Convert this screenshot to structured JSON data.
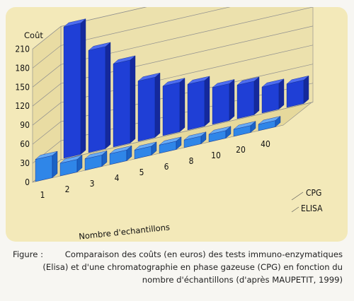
{
  "chart_data": {
    "type": "bar",
    "subtype": "3d-grouped",
    "title": "",
    "ylabel": "Coût",
    "xlabel": "Nombre d'echantillons",
    "ylim": [
      0,
      210
    ],
    "yticks": [
      0,
      30,
      60,
      90,
      120,
      150,
      180,
      210
    ],
    "categories": [
      "1",
      "2",
      "3",
      "4",
      "5",
      "6",
      "8",
      "10",
      "20",
      "40"
    ],
    "series": [
      {
        "name": "ELISA",
        "values": [
          35,
          20,
          18,
          17,
          14,
          13,
          12,
          12,
          11,
          10
        ]
      },
      {
        "name": "CPG",
        "values": [
          207,
          161,
          131,
          95,
          78,
          72,
          58,
          53,
          41,
          37
        ]
      }
    ],
    "grid": true,
    "legend": "depth-axis-right",
    "colors": {
      "front": "#2f86e8",
      "back": "#1f3fd6",
      "panel": "#f3e9b9"
    }
  },
  "caption": {
    "label": "Figure   :",
    "lines": [
      "Comparaison des coûts (en euros) des tests immuno-enzymatiques",
      "(Elisa) et d'une chromatographie en phase gazeuse (CPG) en fonction du",
      "nombre d'échantillons (d'après MAUPETIT, 1999)"
    ]
  }
}
